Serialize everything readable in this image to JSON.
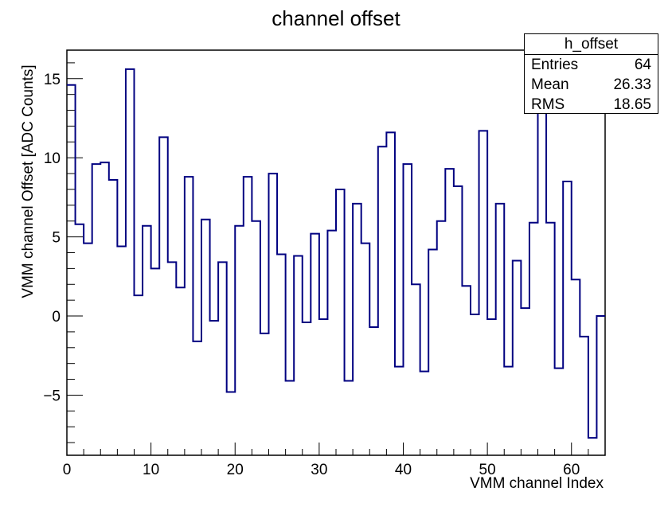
{
  "chart_data": {
    "type": "histogram",
    "title": "channel offset",
    "xlabel": "VMM channel Index",
    "ylabel": "VMM channel Offset [ADC Counts]",
    "xlim": [
      0,
      64
    ],
    "ylim": [
      -8.8,
      16.8
    ],
    "xticks": [
      0,
      10,
      20,
      30,
      40,
      50,
      60
    ],
    "yticks": [
      -5,
      0,
      5,
      10,
      15
    ],
    "line_color": "#000080",
    "bin_edges_start": 0,
    "bin_width": 1,
    "values": [
      14.6,
      5.8,
      4.6,
      9.6,
      9.7,
      8.6,
      4.4,
      15.6,
      1.3,
      5.7,
      3.0,
      11.3,
      3.4,
      1.8,
      8.8,
      -1.6,
      6.1,
      -0.3,
      3.4,
      -4.8,
      5.7,
      8.8,
      6.0,
      -1.1,
      9.0,
      3.9,
      -4.1,
      3.8,
      -0.4,
      5.2,
      -0.2,
      5.4,
      8.0,
      -4.1,
      7.1,
      4.6,
      -0.7,
      10.7,
      11.6,
      -3.2,
      9.6,
      2.0,
      -3.5,
      4.2,
      6.0,
      9.3,
      8.2,
      1.9,
      0.1,
      11.7,
      -0.2,
      7.1,
      -3.2,
      3.5,
      0.5,
      5.9,
      13.4,
      5.9,
      -3.3,
      8.5,
      2.3,
      -1.3,
      -7.7,
      0.0
    ],
    "stats": {
      "name": "h_offset",
      "entries_label": "Entries",
      "entries": "64",
      "mean_label": "Mean",
      "mean": "26.33",
      "rms_label": "RMS",
      "rms": "18.65"
    }
  }
}
